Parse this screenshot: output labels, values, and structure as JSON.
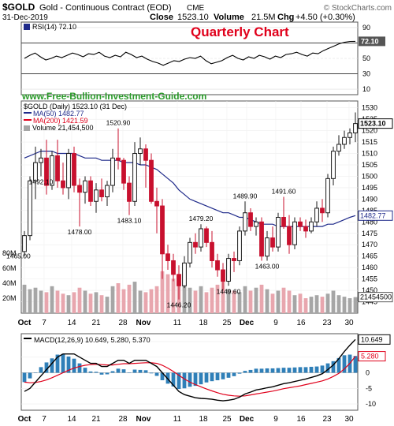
{
  "header": {
    "symbol": "$GOLD",
    "name": "Gold - Continuous Contract (EOD)",
    "exchange": "CME",
    "date": "31-Dec-2019",
    "close_label": "Close",
    "close": "1523.10",
    "volume_label": "Volume",
    "volume": "21.5M",
    "chg_label": "Chg",
    "chg": "+4.50 (+0.30%)",
    "source": "© StockCharts.com"
  },
  "annotations": {
    "quarterly": "Quarterly Chart",
    "website": "www.Free-Bullion-Investment-Guide.com"
  },
  "colors": {
    "up": "#1a1a1a",
    "down": "#c8102e",
    "ma50": "#1f2a8a",
    "ma200": "#e0001b",
    "volume_up": "#a6a6a6",
    "volume_down": "#e8a6ae",
    "macd_hist": "#2f7fb8",
    "macd_signal": "#e0001b",
    "title_red": "#e0001b",
    "site_green": "#2a9a2a"
  },
  "rsi": {
    "legend": "RSI(14) 72.10",
    "value_badge": "72.10",
    "axis_labels": [
      "90",
      "70",
      "50",
      "30",
      "10"
    ],
    "values": [
      50,
      54,
      57,
      52,
      48,
      50,
      53,
      51,
      54,
      57,
      55,
      52,
      56,
      55,
      58,
      53,
      51,
      54,
      52,
      58,
      55,
      51,
      53,
      49,
      46,
      44,
      41,
      44,
      47,
      46,
      49,
      51,
      50,
      53,
      47,
      43,
      45,
      47,
      51,
      54,
      50,
      48,
      52,
      50,
      54,
      52,
      49,
      53,
      51,
      55,
      56,
      58,
      55,
      53,
      57,
      56,
      60,
      63,
      66,
      69,
      71,
      72,
      72.1
    ]
  },
  "price_panel": {
    "legend": [
      "$GOLD (Daily) 1523.10 (31 Dec)",
      "MA(50) 1482.77",
      "MA(200) 1421.59",
      "Volume 21,454,500"
    ],
    "price_axis": [
      "1530",
      "1525",
      "1520",
      "1515",
      "1510",
      "1505",
      "1500",
      "1495",
      "1490",
      "1485",
      "1480",
      "1475",
      "1470",
      "1465",
      "1460",
      "1455",
      "1450",
      "1445"
    ],
    "volume_axis": [
      "80M",
      "60M",
      "40M",
      "20M"
    ],
    "badges": [
      "1523.10",
      "1482.77",
      "21454500"
    ],
    "price_annotations": [
      "1465.00",
      "1492.10",
      "1478.00",
      "1520.90",
      "1483.10",
      "1446.20",
      "1479.20",
      "1449.60",
      "1489.90",
      "1491.60",
      "1463.00"
    ]
  },
  "macd": {
    "legend": "MACD(12,26,9) 10.649, 5.280, 5.370",
    "badges": [
      "10.649",
      "5.280"
    ],
    "axis_labels": [
      "10",
      "5",
      "0",
      "-5",
      "-10"
    ]
  },
  "x_axis_labels": [
    "Oct",
    "7",
    "14",
    "21",
    "28",
    "Nov",
    "11",
    "18",
    "25",
    "Dec",
    "9",
    "16",
    "23",
    "30"
  ],
  "chart_data": {
    "type": "candlestick",
    "symbol": "$GOLD",
    "last_close": 1523.1,
    "ma50_last": 1482.77,
    "ma200_last": 1421.59,
    "candles": [
      {
        "o": 1467,
        "h": 1476,
        "l": 1465,
        "c": 1474
      },
      {
        "o": 1474,
        "h": 1500,
        "l": 1472,
        "c": 1498
      },
      {
        "o": 1498,
        "h": 1513,
        "l": 1490,
        "c": 1506
      },
      {
        "o": 1506,
        "h": 1512,
        "l": 1500,
        "c": 1508
      },
      {
        "o": 1508,
        "h": 1516,
        "l": 1492,
        "c": 1496
      },
      {
        "o": 1496,
        "h": 1511,
        "l": 1494,
        "c": 1509
      },
      {
        "o": 1509,
        "h": 1516,
        "l": 1495,
        "c": 1498
      },
      {
        "o": 1498,
        "h": 1506,
        "l": 1492,
        "c": 1495
      },
      {
        "o": 1495,
        "h": 1512,
        "l": 1490,
        "c": 1510
      },
      {
        "o": 1510,
        "h": 1513,
        "l": 1493,
        "c": 1496
      },
      {
        "o": 1496,
        "h": 1499,
        "l": 1478,
        "c": 1493
      },
      {
        "o": 1493,
        "h": 1500,
        "l": 1488,
        "c": 1498
      },
      {
        "o": 1498,
        "h": 1500,
        "l": 1487,
        "c": 1489
      },
      {
        "o": 1489,
        "h": 1497,
        "l": 1484,
        "c": 1494
      },
      {
        "o": 1494,
        "h": 1499,
        "l": 1489,
        "c": 1491
      },
      {
        "o": 1491,
        "h": 1498,
        "l": 1487,
        "c": 1496
      },
      {
        "o": 1496,
        "h": 1512,
        "l": 1493,
        "c": 1508
      },
      {
        "o": 1508,
        "h": 1521,
        "l": 1503,
        "c": 1507
      },
      {
        "o": 1507,
        "h": 1508,
        "l": 1494,
        "c": 1497
      },
      {
        "o": 1497,
        "h": 1500,
        "l": 1483,
        "c": 1489
      },
      {
        "o": 1489,
        "h": 1515,
        "l": 1487,
        "c": 1510
      },
      {
        "o": 1510,
        "h": 1517,
        "l": 1505,
        "c": 1512
      },
      {
        "o": 1512,
        "h": 1514,
        "l": 1495,
        "c": 1507
      },
      {
        "o": 1507,
        "h": 1510,
        "l": 1488,
        "c": 1489
      },
      {
        "o": 1489,
        "h": 1495,
        "l": 1475,
        "c": 1487
      },
      {
        "o": 1487,
        "h": 1490,
        "l": 1455,
        "c": 1466
      },
      {
        "o": 1466,
        "h": 1470,
        "l": 1459,
        "c": 1463
      },
      {
        "o": 1463,
        "h": 1466,
        "l": 1454,
        "c": 1457
      },
      {
        "o": 1457,
        "h": 1461,
        "l": 1446,
        "c": 1452
      },
      {
        "o": 1452,
        "h": 1465,
        "l": 1451,
        "c": 1462
      },
      {
        "o": 1462,
        "h": 1473,
        "l": 1460,
        "c": 1471
      },
      {
        "o": 1471,
        "h": 1475,
        "l": 1466,
        "c": 1469
      },
      {
        "o": 1469,
        "h": 1479,
        "l": 1467,
        "c": 1477
      },
      {
        "o": 1477,
        "h": 1478,
        "l": 1469,
        "c": 1471
      },
      {
        "o": 1471,
        "h": 1476,
        "l": 1460,
        "c": 1463
      },
      {
        "o": 1463,
        "h": 1466,
        "l": 1456,
        "c": 1459
      },
      {
        "o": 1459,
        "h": 1462,
        "l": 1450,
        "c": 1454
      },
      {
        "o": 1454,
        "h": 1466,
        "l": 1452,
        "c": 1464
      },
      {
        "o": 1464,
        "h": 1467,
        "l": 1458,
        "c": 1463
      },
      {
        "o": 1463,
        "h": 1478,
        "l": 1461,
        "c": 1476
      },
      {
        "o": 1476,
        "h": 1489,
        "l": 1474,
        "c": 1484
      },
      {
        "o": 1484,
        "h": 1486,
        "l": 1476,
        "c": 1478
      },
      {
        "o": 1478,
        "h": 1482,
        "l": 1474,
        "c": 1480
      },
      {
        "o": 1480,
        "h": 1482,
        "l": 1463,
        "c": 1465
      },
      {
        "o": 1465,
        "h": 1476,
        "l": 1463,
        "c": 1473
      },
      {
        "o": 1473,
        "h": 1478,
        "l": 1467,
        "c": 1469
      },
      {
        "o": 1469,
        "h": 1484,
        "l": 1467,
        "c": 1482
      },
      {
        "o": 1482,
        "h": 1491,
        "l": 1477,
        "c": 1478
      },
      {
        "o": 1478,
        "h": 1483,
        "l": 1466,
        "c": 1470
      },
      {
        "o": 1470,
        "h": 1482,
        "l": 1468,
        "c": 1480
      },
      {
        "o": 1480,
        "h": 1482,
        "l": 1476,
        "c": 1478
      },
      {
        "o": 1478,
        "h": 1481,
        "l": 1473,
        "c": 1476
      },
      {
        "o": 1476,
        "h": 1482,
        "l": 1475,
        "c": 1480
      },
      {
        "o": 1480,
        "h": 1489,
        "l": 1478,
        "c": 1486
      },
      {
        "o": 1486,
        "h": 1490,
        "l": 1480,
        "c": 1484
      },
      {
        "o": 1484,
        "h": 1501,
        "l": 1482,
        "c": 1499
      },
      {
        "o": 1499,
        "h": 1513,
        "l": 1496,
        "c": 1511
      },
      {
        "o": 1511,
        "h": 1518,
        "l": 1509,
        "c": 1514
      },
      {
        "o": 1514,
        "h": 1520,
        "l": 1512,
        "c": 1517
      },
      {
        "o": 1517,
        "h": 1521,
        "l": 1514,
        "c": 1519
      },
      {
        "o": 1519,
        "h": 1528,
        "l": 1515,
        "c": 1523.1
      }
    ],
    "ma50": [
      1508,
      1509,
      1510,
      1511,
      1511,
      1511,
      1510,
      1510,
      1510,
      1510,
      1509,
      1508,
      1508,
      1508,
      1507,
      1507,
      1507,
      1507,
      1506,
      1506,
      1506,
      1505,
      1505,
      1504,
      1503,
      1501,
      1499,
      1497,
      1494,
      1492,
      1490,
      1489,
      1488,
      1487,
      1486,
      1485,
      1484,
      1484,
      1483,
      1482,
      1482,
      1481,
      1480,
      1479,
      1479,
      1479,
      1478,
      1478,
      1478,
      1478,
      1478,
      1478,
      1478,
      1478,
      1478,
      1479,
      1479,
      1480,
      1481,
      1482,
      1482.77
    ],
    "volume_millions": [
      38,
      32,
      34,
      30,
      28,
      36,
      30,
      26,
      24,
      28,
      34,
      30,
      26,
      28,
      24,
      22,
      36,
      40,
      32,
      38,
      42,
      30,
      28,
      32,
      36,
      56,
      52,
      46,
      48,
      40,
      34,
      30,
      36,
      28,
      34,
      38,
      44,
      32,
      30,
      28,
      36,
      30,
      34,
      38,
      32,
      26,
      30,
      34,
      30,
      24,
      26,
      20,
      22,
      24,
      22,
      26,
      30,
      24,
      22,
      20,
      21.45
    ],
    "macd_line": [
      -6,
      -5,
      -3,
      -1,
      1,
      3,
      5,
      6,
      6,
      6,
      5,
      4,
      3,
      3,
      2,
      2,
      3,
      4,
      4,
      3,
      4,
      4,
      4,
      3,
      2,
      0,
      -2,
      -4,
      -6,
      -7,
      -7.5,
      -8,
      -8.2,
      -8.3,
      -8.5,
      -8.8,
      -9,
      -8.8,
      -8.5,
      -7.8,
      -6.8,
      -6.2,
      -5.5,
      -5.2,
      -4.8,
      -4.5,
      -4,
      -3.5,
      -3.2,
      -2.8,
      -2.4,
      -2,
      -1.5,
      -1,
      -0.3,
      1,
      2.5,
      4.5,
      6.8,
      8.8,
      10.649
    ],
    "macd_signal": [
      -3,
      -3.2,
      -3.1,
      -2.8,
      -2.3,
      -1.6,
      -0.8,
      0,
      0.8,
      1.5,
      2,
      2.4,
      2.6,
      2.7,
      2.6,
      2.5,
      2.5,
      2.7,
      2.9,
      2.9,
      3,
      3.1,
      3.2,
      3.2,
      3,
      2.4,
      1.5,
      0.4,
      -0.8,
      -2,
      -3,
      -3.8,
      -4.5,
      -5.2,
      -5.8,
      -6.4,
      -6.9,
      -7.2,
      -7.4,
      -7.5,
      -7.4,
      -7.1,
      -6.8,
      -6.5,
      -6.2,
      -5.9,
      -5.5,
      -5.1,
      -4.8,
      -4.5,
      -4.2,
      -3.8,
      -3.4,
      -3,
      -2.6,
      -2,
      -1.2,
      -0.2,
      1.2,
      3,
      5.28
    ]
  }
}
